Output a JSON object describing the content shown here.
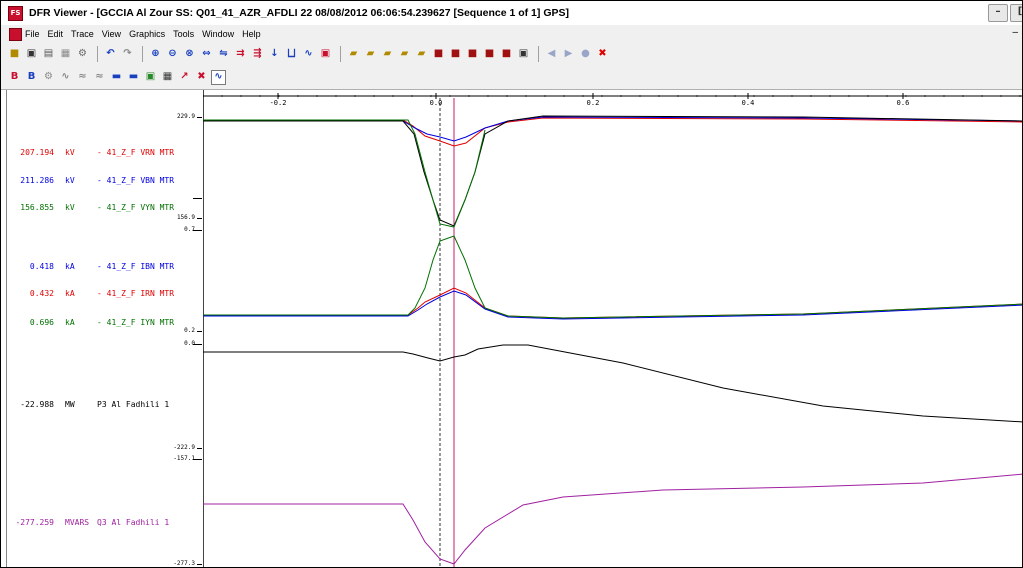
{
  "window": {
    "title": "DFR Viewer - [GCCIA Al Zour SS: Q01_41_AZR_AFDLI   22   08/08/2012   06:06:54.239627        [Sequence  1 of 1]    GPS]",
    "min_label": "–",
    "restore_label": "[",
    "app_icon_text": "FS"
  },
  "menu": [
    "File",
    "Edit",
    "Trace",
    "View",
    "Graphics",
    "Tools",
    "Window",
    "Help"
  ],
  "menu_right": "–",
  "toolbar1": [
    {
      "name": "open-icon",
      "glyph": "■",
      "color": "#b08a00"
    },
    {
      "name": "print-icon",
      "glyph": "▣",
      "color": "#333"
    },
    {
      "name": "print-preview-icon",
      "glyph": "▤",
      "color": "#555"
    },
    {
      "name": "grid-icon",
      "glyph": "▦",
      "color": "#888"
    },
    {
      "name": "properties-icon",
      "glyph": "⚙",
      "color": "#666"
    },
    {
      "name": "undo-icon",
      "glyph": "↶",
      "color": "#1a3fbf"
    },
    {
      "name": "redo-icon",
      "glyph": "↷",
      "color": "#888"
    },
    {
      "name": "zoom-in-icon",
      "glyph": "⊕",
      "color": "#1a3fbf"
    },
    {
      "name": "zoom-out-icon",
      "glyph": "⊖",
      "color": "#1a3fbf"
    },
    {
      "name": "zoom-fit-icon",
      "glyph": "⊗",
      "color": "#1a3fbf"
    },
    {
      "name": "expand-horizontal-icon",
      "glyph": "⇔",
      "color": "#1a3fbf"
    },
    {
      "name": "compress-icon",
      "glyph": "⇋",
      "color": "#1a3fbf"
    },
    {
      "name": "step-icon",
      "glyph": "⇉",
      "color": "#c8102e"
    },
    {
      "name": "multi-trace-icon",
      "glyph": "⇶",
      "color": "#c8102e"
    },
    {
      "name": "down-arrow-icon",
      "glyph": "↓",
      "color": "#1a3fbf"
    },
    {
      "name": "filter-icon",
      "glyph": "⨆",
      "color": "#1a3fbf"
    },
    {
      "name": "signal-icon",
      "glyph": "∿",
      "color": "#1a3fbf"
    },
    {
      "name": "overlay-icon",
      "glyph": "▣",
      "color": "#c8102e"
    },
    {
      "name": "folder-open-1-icon",
      "glyph": "▰",
      "color": "#b08a00"
    },
    {
      "name": "folder-open-2-icon",
      "glyph": "▰",
      "color": "#b08a00"
    },
    {
      "name": "folder-open-3-icon",
      "glyph": "▰",
      "color": "#b08a00"
    },
    {
      "name": "folder-open-4-icon",
      "glyph": "▰",
      "color": "#b08a00"
    },
    {
      "name": "folder-open-5-icon",
      "glyph": "▰",
      "color": "#b08a00"
    },
    {
      "name": "save-1-icon",
      "glyph": "■",
      "color": "#a01010"
    },
    {
      "name": "save-2-icon",
      "glyph": "■",
      "color": "#a01010"
    },
    {
      "name": "save-3-icon",
      "glyph": "■",
      "color": "#a01010"
    },
    {
      "name": "save-4-icon",
      "glyph": "■",
      "color": "#a01010"
    },
    {
      "name": "save-5-icon",
      "glyph": "■",
      "color": "#a01010"
    },
    {
      "name": "save-all-icon",
      "glyph": "▣",
      "color": "#333"
    },
    {
      "name": "nav-back-icon",
      "glyph": "◀",
      "color": "#9aa6c8"
    },
    {
      "name": "nav-forward-icon",
      "glyph": "▶",
      "color": "#9aa6c8"
    },
    {
      "name": "nav-record-icon",
      "glyph": "●",
      "color": "#9aa6c8"
    },
    {
      "name": "close-icon",
      "glyph": "✖",
      "color": "#e00000"
    }
  ],
  "toolbar2": [
    {
      "name": "bold-red-icon",
      "glyph": "B",
      "color": "#c8102e"
    },
    {
      "name": "bold-blue-icon",
      "glyph": "B",
      "color": "#1a3fbf"
    },
    {
      "name": "settings-icon",
      "glyph": "⚙",
      "color": "#888"
    },
    {
      "name": "waveform-icon",
      "glyph": "∿",
      "color": "#888"
    },
    {
      "name": "harmonic-icon",
      "glyph": "≈",
      "color": "#888"
    },
    {
      "name": "phasor-icon",
      "glyph": "≈",
      "color": "#888"
    },
    {
      "name": "display-1-icon",
      "glyph": "▬",
      "color": "#1a3fbf"
    },
    {
      "name": "display-2-icon",
      "glyph": "▬",
      "color": "#1a3fbf"
    },
    {
      "name": "monitor-icon",
      "glyph": "▣",
      "color": "#2a8a2a"
    },
    {
      "name": "table-icon",
      "glyph": "▦",
      "color": "#333"
    },
    {
      "name": "cursor-icon",
      "glyph": "↗",
      "color": "#c8102e"
    },
    {
      "name": "marker-icon",
      "glyph": "✖",
      "color": "#c8102e"
    },
    {
      "name": "wave-overlay-icon",
      "glyph": "∿",
      "color": "#1a3fbf",
      "pressed": true
    }
  ],
  "channels": [
    {
      "value": "207.194",
      "unit": "kV",
      "name": "- 41_Z_F VRN MTR",
      "color": "#e00000"
    },
    {
      "value": "211.286",
      "unit": "kV",
      "name": "- 41_Z_F VBN MTR",
      "color": "#0000e0"
    },
    {
      "value": "156.855",
      "unit": "kV",
      "name": "- 41_Z_F VYN MTR",
      "color": "#007000"
    },
    {
      "value": "0.418",
      "unit": "kA",
      "name": "- 41_Z_F IBN MTR",
      "color": "#0000e0"
    },
    {
      "value": "0.432",
      "unit": "kA",
      "name": "- 41_Z_F IRN MTR",
      "color": "#e00000"
    },
    {
      "value": "0.696",
      "unit": "kA",
      "name": "- 41_Z_F IYN MTR",
      "color": "#007000"
    },
    {
      "value": "-22.988",
      "unit": "MW",
      "name": "P3 Al Fadhili 1",
      "color": "#000000"
    },
    {
      "value": "-277.259",
      "unit": "MVARS",
      "name": "Q3 Al Fadhili 1",
      "color": "#a020a0"
    }
  ],
  "scale_ticks": [
    "229.9",
    "156.9",
    "0.7",
    "0.2",
    "0.0",
    "-222.9",
    "-157.1",
    "-277.3"
  ],
  "x_ticks": [
    "-0.2",
    "0.0",
    "0.2",
    "0.4",
    "0.6"
  ],
  "colors": {
    "red": "#e00000",
    "blue": "#0000e0",
    "green": "#007000",
    "black": "#000000",
    "purple": "#a020a0",
    "cursor": "#c81c6e"
  }
}
